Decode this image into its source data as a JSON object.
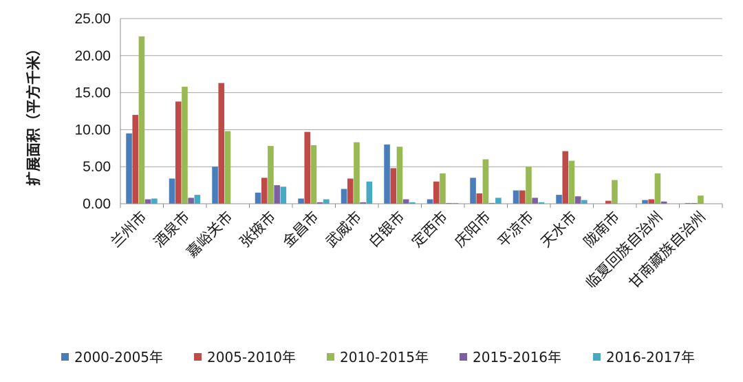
{
  "chart_data": {
    "type": "bar",
    "title": "",
    "xlabel": "",
    "ylabel": "扩展面积（平方千米）",
    "ylim": [
      0,
      25
    ],
    "yticks": [
      "0.00",
      "5.00",
      "10.00",
      "15.00",
      "20.00",
      "25.00"
    ],
    "grid": true,
    "legend_position": "bottom",
    "categories": [
      "兰州市",
      "酒泉市",
      "嘉峪关市",
      "张掖市",
      "金昌市",
      "武威市",
      "白银市",
      "定西市",
      "庆阳市",
      "平凉市",
      "天水市",
      "陇南市",
      "临夏回族自治州",
      "甘南藏族自治州"
    ],
    "series": [
      {
        "name": "2000-2005年",
        "color": "#4a7ebb",
        "values": [
          9.5,
          3.4,
          5.0,
          1.5,
          0.7,
          2.0,
          8.0,
          0.6,
          3.5,
          1.8,
          1.2,
          0.0,
          0.5,
          0.1
        ]
      },
      {
        "name": "2005-2010年",
        "color": "#be4b48",
        "values": [
          12.0,
          13.8,
          16.3,
          3.5,
          9.7,
          3.4,
          4.8,
          3.0,
          1.4,
          1.8,
          7.1,
          0.4,
          0.6,
          0.1
        ]
      },
      {
        "name": "2010-2015年",
        "color": "#98b954",
        "values": [
          22.6,
          15.8,
          9.8,
          7.8,
          7.9,
          8.3,
          7.7,
          4.1,
          6.0,
          5.0,
          5.8,
          3.2,
          4.1,
          1.1
        ]
      },
      {
        "name": "2015-2016年",
        "color": "#7d60a0",
        "values": [
          0.6,
          0.8,
          0.0,
          2.5,
          0.2,
          0.2,
          0.6,
          0.1,
          0.1,
          0.8,
          1.0,
          0.0,
          0.3,
          0.0
        ]
      },
      {
        "name": "2016-2017年",
        "color": "#46aac5",
        "values": [
          0.7,
          1.2,
          0.0,
          2.3,
          0.6,
          3.0,
          0.2,
          0.1,
          0.8,
          0.2,
          0.5,
          0.0,
          0.0,
          0.0
        ]
      }
    ]
  }
}
